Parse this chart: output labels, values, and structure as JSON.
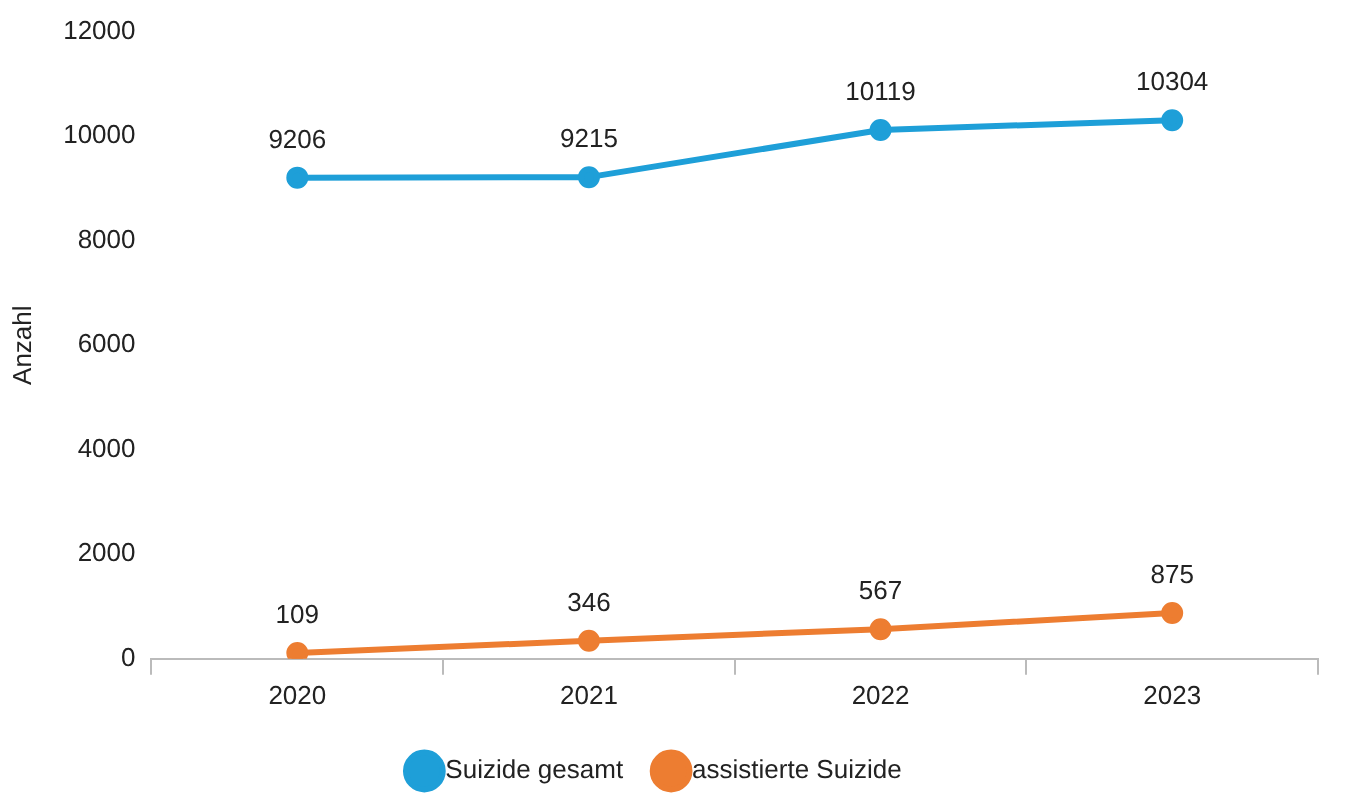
{
  "chart_data": {
    "type": "line",
    "ylabel": "Anzahl",
    "categories": [
      "2020",
      "2021",
      "2022",
      "2023"
    ],
    "series": [
      {
        "name": "Suizide gesamt",
        "color": "#1e9fd8",
        "values": [
          9206,
          9215,
          10119,
          10304
        ]
      },
      {
        "name": "assistierte Suizide",
        "color": "#ed7d31",
        "values": [
          109,
          346,
          567,
          875
        ]
      }
    ],
    "ylim": [
      0,
      12000
    ],
    "yticks": [
      0,
      2000,
      4000,
      6000,
      8000,
      10000,
      12000
    ],
    "grid": false,
    "legend": "bottom",
    "marker": "circle",
    "line_style": "solid",
    "data_labels": true
  }
}
